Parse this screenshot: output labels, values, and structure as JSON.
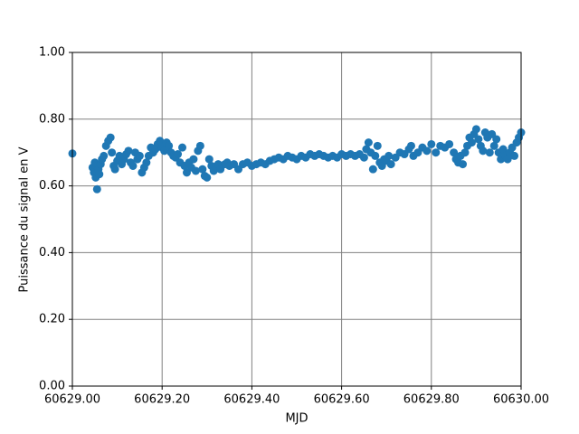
{
  "chart_data": {
    "type": "scatter",
    "xlabel": "MJD",
    "ylabel": "Puissance du signal en V",
    "color": "#1f77b4",
    "grid": true,
    "xlim": [
      60629.0,
      60630.0
    ],
    "xticks": [
      {
        "value": 60629.0,
        "label": "60629.00"
      },
      {
        "value": 60629.2,
        "label": "60629.20"
      },
      {
        "value": 60629.4,
        "label": "60629.40"
      },
      {
        "value": 60629.6,
        "label": "60629.60"
      },
      {
        "value": 60629.8,
        "label": "60629.80"
      },
      {
        "value": 60630.0,
        "label": "60630.00"
      }
    ],
    "ylim": [
      0,
      1
    ],
    "yticks": [
      {
        "value": 0,
        "label": "0.00"
      },
      {
        "value": 0.2,
        "label": "0.20"
      },
      {
        "value": 0.4,
        "label": "0.40"
      },
      {
        "value": 0.6,
        "label": "0.60"
      },
      {
        "value": 0.8,
        "label": "0.80"
      },
      {
        "value": 1,
        "label": "1.00"
      }
    ],
    "x": [
      60629.0,
      60629.045,
      60629.048,
      60629.05,
      60629.052,
      60629.055,
      60629.058,
      60629.06,
      60629.063,
      60629.066,
      60629.07,
      60629.075,
      60629.08,
      60629.085,
      60629.088,
      60629.092,
      60629.095,
      60629.1,
      60629.105,
      60629.11,
      60629.115,
      60629.12,
      60629.125,
      60629.13,
      60629.135,
      60629.14,
      60629.145,
      60629.15,
      60629.155,
      60629.16,
      60629.165,
      60629.17,
      60629.175,
      60629.18,
      60629.185,
      60629.19,
      60629.195,
      60629.2,
      60629.205,
      60629.21,
      60629.215,
      60629.22,
      60629.225,
      60629.23,
      60629.235,
      60629.24,
      60629.245,
      60629.25,
      60629.255,
      60629.26,
      60629.265,
      60629.27,
      60629.275,
      60629.28,
      60629.285,
      60629.29,
      60629.295,
      60629.3,
      60629.305,
      60629.31,
      60629.315,
      60629.32,
      60629.325,
      60629.33,
      60629.34,
      60629.345,
      60629.35,
      60629.36,
      60629.37,
      60629.38,
      60629.39,
      60629.4,
      60629.41,
      60629.42,
      60629.43,
      60629.44,
      60629.45,
      60629.46,
      60629.47,
      60629.48,
      60629.49,
      60629.5,
      60629.51,
      60629.52,
      60629.53,
      60629.54,
      60629.55,
      60629.56,
      60629.57,
      60629.58,
      60629.59,
      60629.6,
      60629.61,
      60629.62,
      60629.63,
      60629.64,
      60629.65,
      60629.655,
      60629.66,
      60629.665,
      60629.67,
      60629.675,
      60629.68,
      60629.685,
      60629.69,
      60629.695,
      60629.7,
      60629.705,
      60629.71,
      60629.72,
      60629.73,
      60629.74,
      60629.75,
      60629.755,
      60629.76,
      60629.77,
      60629.78,
      60629.79,
      60629.8,
      60629.81,
      60629.82,
      60629.83,
      60629.84,
      60629.85,
      60629.855,
      60629.86,
      60629.865,
      60629.87,
      60629.875,
      60629.88,
      60629.885,
      60629.89,
      60629.895,
      60629.9,
      60629.905,
      60629.91,
      60629.915,
      60629.92,
      60629.925,
      60629.93,
      60629.935,
      60629.94,
      60629.945,
      60629.95,
      60629.955,
      60629.96,
      60629.965,
      60629.97,
      60629.975,
      60629.98,
      60629.985,
      60629.99,
      60629.995,
      60630.0
    ],
    "values": [
      0.697,
      0.655,
      0.64,
      0.67,
      0.625,
      0.59,
      0.65,
      0.635,
      0.665,
      0.68,
      0.69,
      0.72,
      0.735,
      0.745,
      0.7,
      0.66,
      0.65,
      0.675,
      0.69,
      0.665,
      0.68,
      0.695,
      0.705,
      0.67,
      0.66,
      0.7,
      0.68,
      0.69,
      0.64,
      0.655,
      0.67,
      0.69,
      0.715,
      0.7,
      0.71,
      0.725,
      0.735,
      0.715,
      0.705,
      0.73,
      0.72,
      0.7,
      0.69,
      0.685,
      0.695,
      0.67,
      0.715,
      0.66,
      0.64,
      0.67,
      0.655,
      0.68,
      0.645,
      0.705,
      0.72,
      0.65,
      0.63,
      0.625,
      0.68,
      0.66,
      0.645,
      0.655,
      0.665,
      0.65,
      0.665,
      0.67,
      0.66,
      0.665,
      0.65,
      0.665,
      0.67,
      0.66,
      0.665,
      0.67,
      0.665,
      0.675,
      0.68,
      0.685,
      0.68,
      0.69,
      0.685,
      0.68,
      0.69,
      0.685,
      0.695,
      0.69,
      0.695,
      0.69,
      0.685,
      0.69,
      0.685,
      0.695,
      0.69,
      0.695,
      0.69,
      0.695,
      0.685,
      0.71,
      0.73,
      0.7,
      0.65,
      0.69,
      0.72,
      0.67,
      0.66,
      0.68,
      0.675,
      0.69,
      0.665,
      0.685,
      0.7,
      0.695,
      0.71,
      0.72,
      0.69,
      0.7,
      0.715,
      0.705,
      0.725,
      0.7,
      0.72,
      0.715,
      0.725,
      0.7,
      0.68,
      0.67,
      0.69,
      0.665,
      0.7,
      0.72,
      0.745,
      0.73,
      0.755,
      0.77,
      0.74,
      0.72,
      0.705,
      0.76,
      0.745,
      0.7,
      0.755,
      0.72,
      0.74,
      0.7,
      0.68,
      0.71,
      0.69,
      0.68,
      0.7,
      0.715,
      0.69,
      0.73,
      0.745,
      0.76
    ]
  }
}
